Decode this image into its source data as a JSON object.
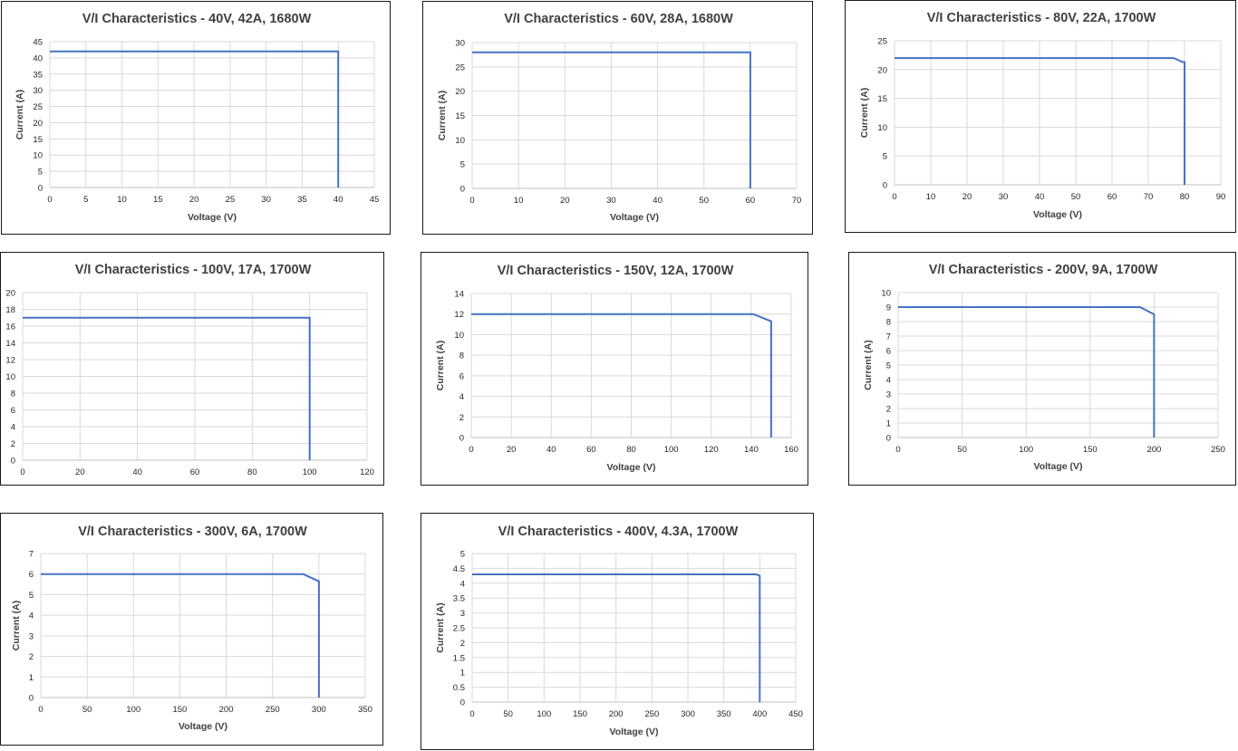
{
  "chart_data": [
    {
      "type": "line",
      "title": "V/I Characteristics - 40V, 42A, 1680W",
      "xlabel": "Voltage (V)",
      "ylabel": "Current (A)",
      "xlim": [
        0,
        45
      ],
      "xticks": [
        0,
        5,
        10,
        15,
        20,
        25,
        30,
        35,
        40,
        45
      ],
      "ylim": [
        0,
        45
      ],
      "yticks": [
        0,
        5,
        10,
        15,
        20,
        25,
        30,
        35,
        40,
        45
      ],
      "grid": true,
      "series": [
        {
          "x": [
            0,
            40,
            40
          ],
          "y": [
            42,
            42,
            0
          ]
        }
      ]
    },
    {
      "type": "line",
      "title": "V/I Characteristics - 60V, 28A, 1680W",
      "xlabel": "Voltage (V)",
      "ylabel": "Current (A)",
      "xlim": [
        0,
        70
      ],
      "xticks": [
        0,
        10,
        20,
        30,
        40,
        50,
        60,
        70
      ],
      "ylim": [
        0,
        30
      ],
      "yticks": [
        0,
        5,
        10,
        15,
        20,
        25,
        30
      ],
      "grid": true,
      "series": [
        {
          "x": [
            0,
            60,
            60
          ],
          "y": [
            28,
            28,
            0
          ]
        }
      ]
    },
    {
      "type": "line",
      "title": "V/I Characteristics - 80V, 22A, 1700W",
      "xlabel": "Voltage (V)",
      "ylabel": "Current (A)",
      "xlim": [
        0,
        90
      ],
      "xticks": [
        0,
        10,
        20,
        30,
        40,
        50,
        60,
        70,
        80,
        90
      ],
      "ylim": [
        0,
        25
      ],
      "yticks": [
        0,
        5,
        10,
        15,
        20,
        25
      ],
      "grid": true,
      "series": [
        {
          "x": [
            0,
            77,
            79.5,
            80,
            80
          ],
          "y": [
            22,
            22,
            21.3,
            21.3,
            0
          ]
        }
      ]
    },
    {
      "type": "line",
      "title": "V/I Characteristics - 100V, 17A, 1700W",
      "xlabel": "",
      "ylabel": "",
      "xlim": [
        0,
        120
      ],
      "xticks": [
        0,
        20,
        40,
        60,
        80,
        100,
        120
      ],
      "ylim": [
        0,
        20
      ],
      "yticks": [
        0,
        2,
        4,
        6,
        8,
        10,
        12,
        14,
        16,
        18,
        20
      ],
      "grid": true,
      "series": [
        {
          "x": [
            0,
            100,
            100
          ],
          "y": [
            17,
            17,
            0
          ]
        }
      ]
    },
    {
      "type": "line",
      "title": "V/I Characteristics - 150V, 12A, 1700W",
      "xlabel": "Voltage (V)",
      "ylabel": "Current (A)",
      "xlim": [
        0,
        160
      ],
      "xticks": [
        0,
        20,
        40,
        60,
        80,
        100,
        120,
        140,
        160
      ],
      "ylim": [
        0,
        14
      ],
      "yticks": [
        0,
        2,
        4,
        6,
        8,
        10,
        12,
        14
      ],
      "grid": true,
      "series": [
        {
          "x": [
            0,
            141,
            150,
            150
          ],
          "y": [
            12,
            12,
            11.3,
            0
          ]
        }
      ]
    },
    {
      "type": "line",
      "title": "V/I Characteristics - 200V, 9A, 1700W",
      "xlabel": "Voltage (V)",
      "ylabel": "Current (A)",
      "xlim": [
        0,
        250
      ],
      "xticks": [
        0,
        50,
        100,
        150,
        200,
        250
      ],
      "ylim": [
        0,
        10
      ],
      "yticks": [
        0,
        1,
        2,
        3,
        4,
        5,
        6,
        7,
        8,
        9,
        10
      ],
      "grid": true,
      "series": [
        {
          "x": [
            0,
            189,
            200,
            200
          ],
          "y": [
            9,
            9,
            8.5,
            0
          ]
        }
      ]
    },
    {
      "type": "line",
      "title": "V/I Characteristics - 300V, 6A, 1700W",
      "xlabel": "Voltage (V)",
      "ylabel": "Current (A)",
      "xlim": [
        0,
        350
      ],
      "xticks": [
        0,
        50,
        100,
        150,
        200,
        250,
        300,
        350
      ],
      "ylim": [
        0,
        7
      ],
      "yticks": [
        0,
        1,
        2,
        3,
        4,
        5,
        6,
        7
      ],
      "grid": true,
      "series": [
        {
          "x": [
            0,
            283,
            300,
            300
          ],
          "y": [
            6,
            6,
            5.65,
            0
          ]
        }
      ]
    },
    {
      "type": "line",
      "title": "V/I Characteristics - 400V, 4.3A, 1700W",
      "xlabel": "Voltage (V)",
      "ylabel": "Current (A)",
      "xlim": [
        0,
        450
      ],
      "xticks": [
        0,
        50,
        100,
        150,
        200,
        250,
        300,
        350,
        400,
        450
      ],
      "ylim": [
        0,
        5
      ],
      "yticks": [
        0,
        0.5,
        1,
        1.5,
        2,
        2.5,
        3,
        3.5,
        4,
        4.5,
        5
      ],
      "grid": true,
      "series": [
        {
          "x": [
            0,
            395,
            400,
            400
          ],
          "y": [
            4.3,
            4.3,
            4.25,
            0
          ]
        }
      ]
    }
  ]
}
